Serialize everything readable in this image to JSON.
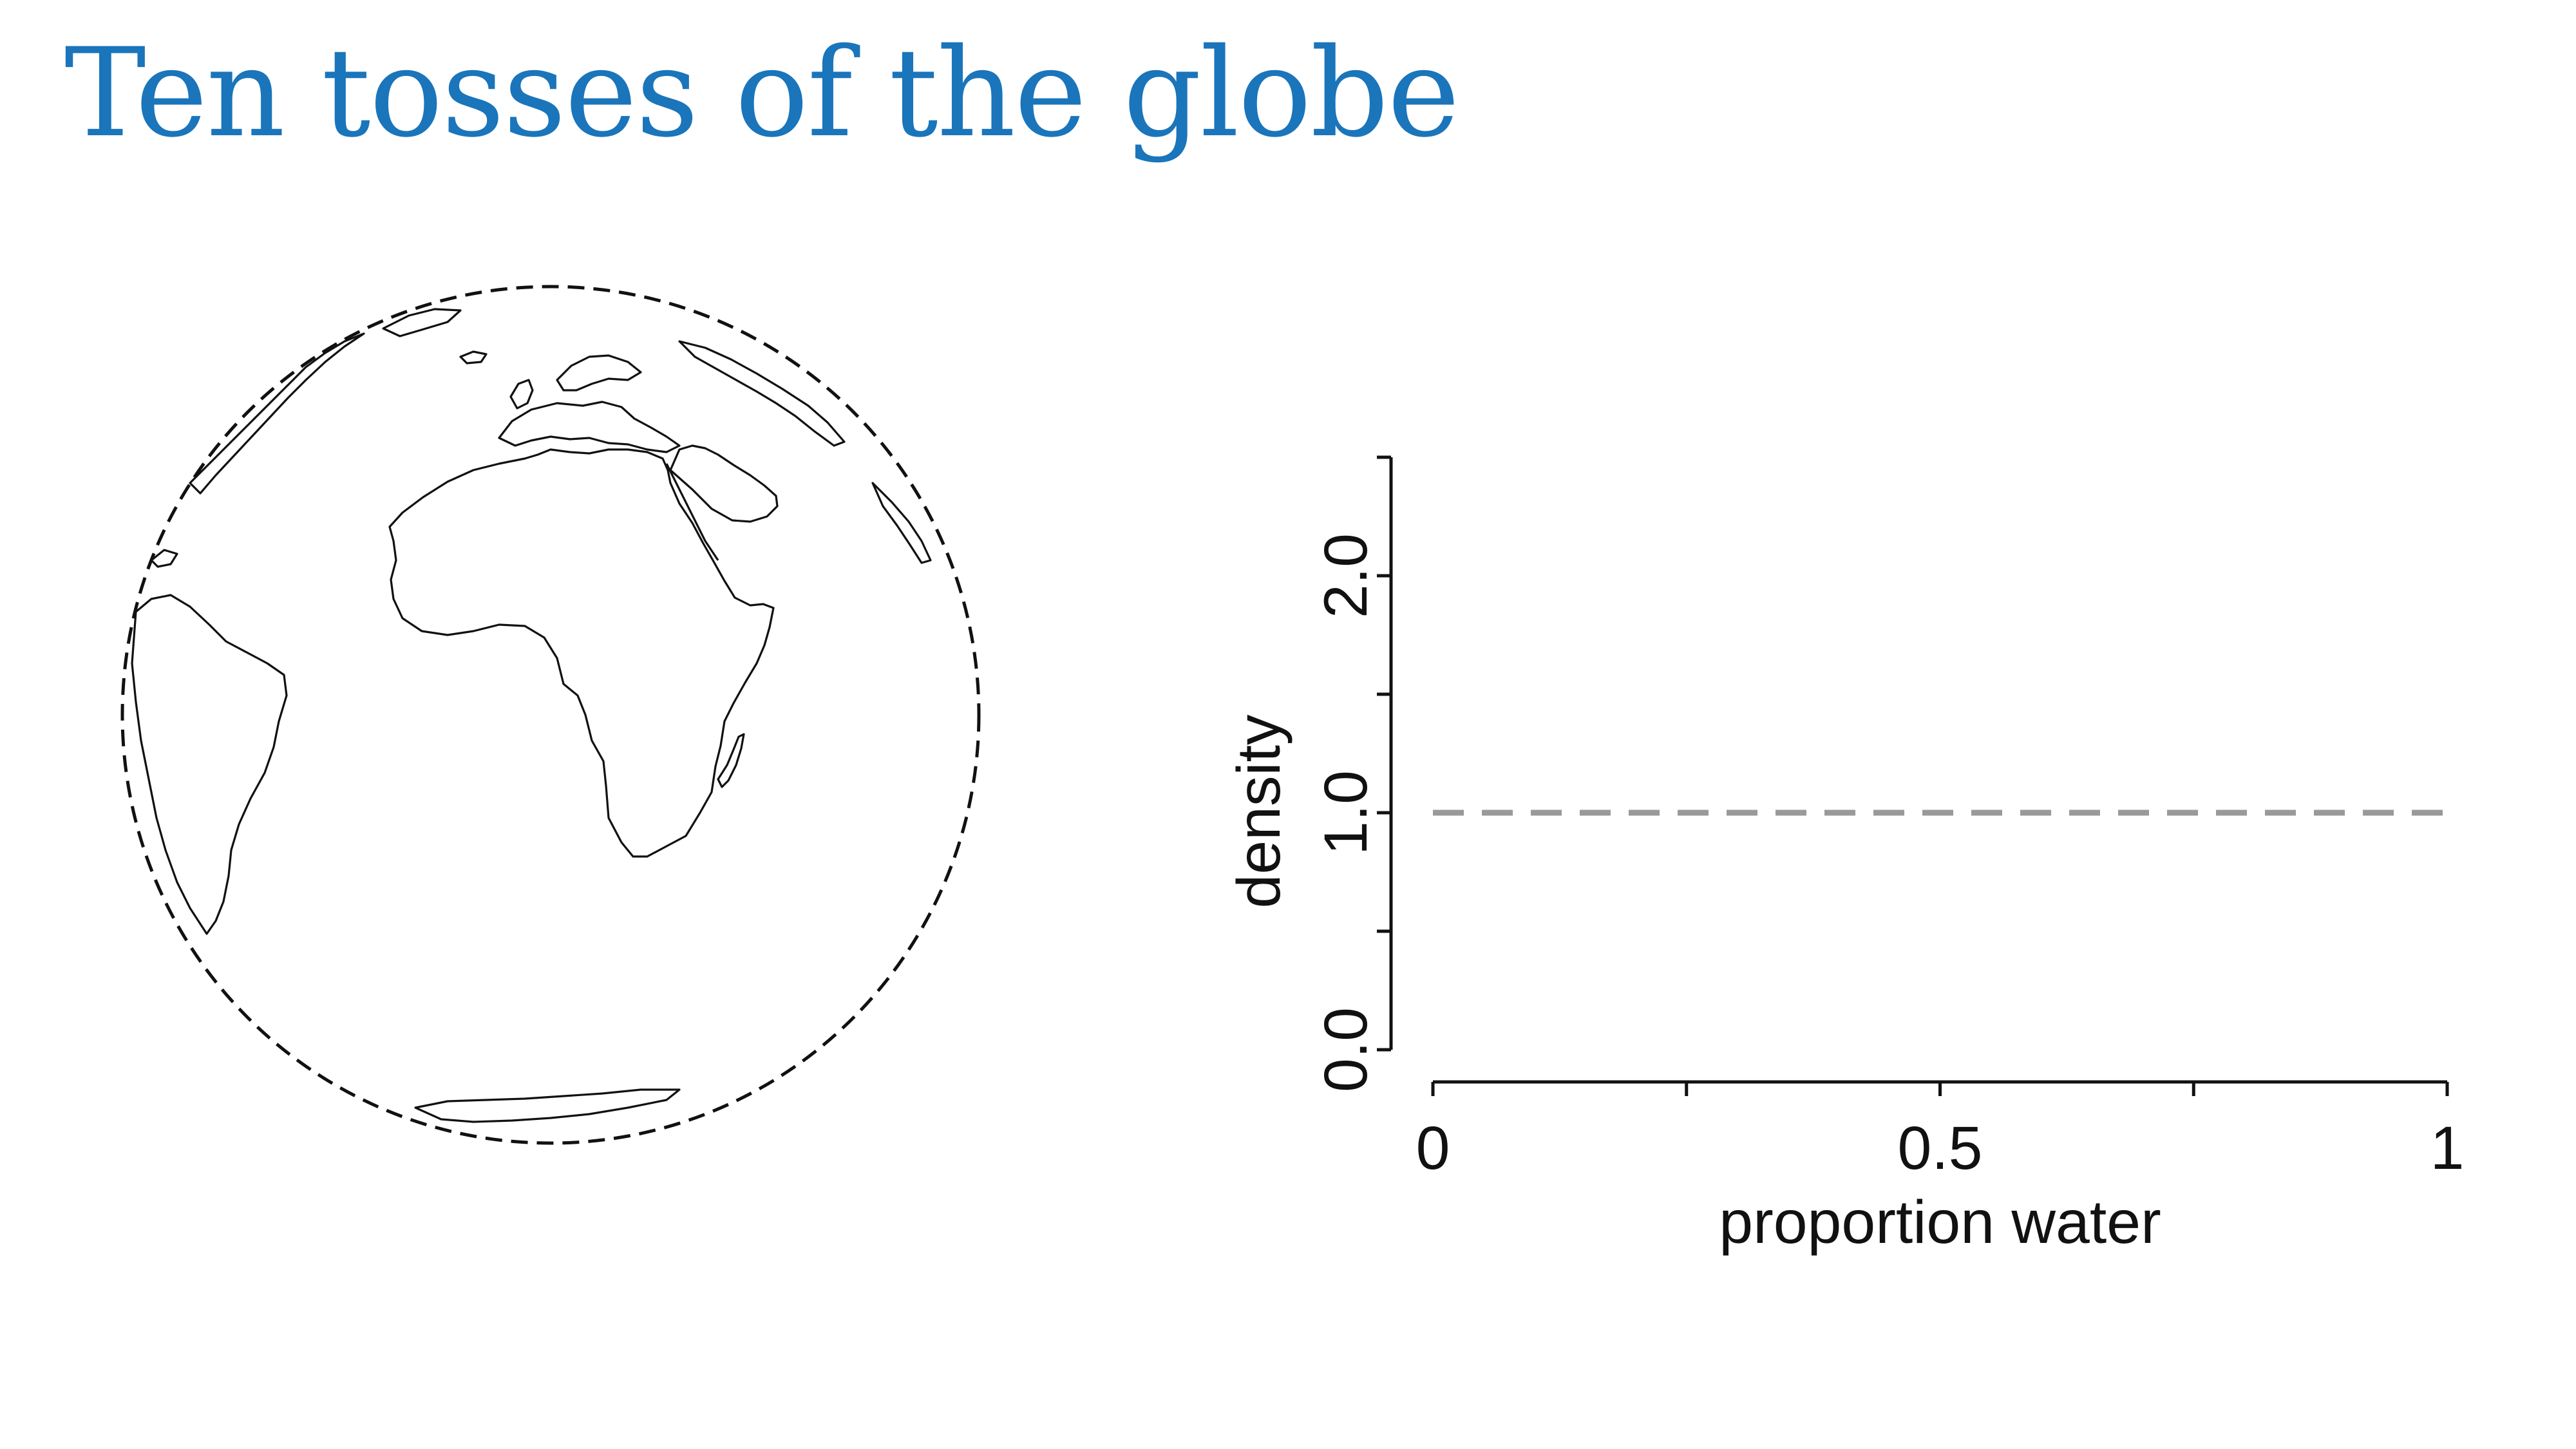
{
  "slide": {
    "title": "Ten tosses of the globe"
  },
  "globe": {
    "icon": "globe-africa-icon"
  },
  "chart_data": {
    "type": "line",
    "title": "",
    "xlabel": "proportion water",
    "ylabel": "density",
    "xlim": [
      0,
      1
    ],
    "ylim": [
      0,
      2.5
    ],
    "x_ticks": [
      0,
      0.25,
      0.5,
      0.75,
      1
    ],
    "x_tick_labels": [
      "0",
      "",
      "0.5",
      "",
      "1"
    ],
    "y_ticks": [
      0,
      0.5,
      1,
      1.5,
      2,
      2.5
    ],
    "y_tick_labels": [
      "0.0",
      "",
      "1.0",
      "",
      "2.0",
      ""
    ],
    "series": [
      {
        "x": [
          0,
          1
        ],
        "values": [
          1,
          1
        ],
        "color": "#999999",
        "dash": "dashed"
      }
    ]
  }
}
